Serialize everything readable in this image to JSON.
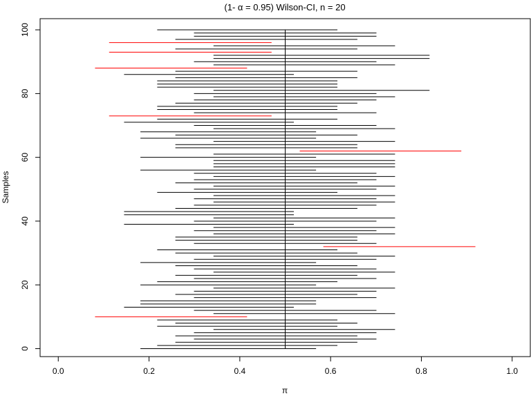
{
  "chart_data": {
    "type": "interval",
    "title": "(1- α = 0.95) Wilson-CI, n = 20",
    "xlabel": "π",
    "ylabel": "Samples",
    "xlim": [
      -0.04,
      1.04
    ],
    "ylim": [
      -2.5,
      103.5
    ],
    "xticks": [
      0.0,
      0.2,
      0.4,
      0.6,
      0.8,
      1.0
    ],
    "xtick_labels": [
      "0.0",
      "0.2",
      "0.4",
      "0.6",
      "0.8",
      "1.0"
    ],
    "yticks": [
      0,
      20,
      40,
      60,
      80,
      100
    ],
    "ytick_labels": [
      "0",
      "20",
      "40",
      "60",
      "80",
      "100"
    ],
    "reference_line": 0.5,
    "colors": {
      "covering": "#000000",
      "missing": "#ff0000"
    },
    "intervals": [
      [
        0.181,
        0.568
      ],
      [
        0.218,
        0.615
      ],
      [
        0.258,
        0.659
      ],
      [
        0.299,
        0.701
      ],
      [
        0.258,
        0.659
      ],
      [
        0.299,
        0.701
      ],
      [
        0.342,
        0.742
      ],
      [
        0.218,
        0.615
      ],
      [
        0.258,
        0.659
      ],
      [
        0.218,
        0.615
      ],
      [
        0.081,
        0.416
      ],
      [
        0.342,
        0.742
      ],
      [
        0.299,
        0.701
      ],
      [
        0.145,
        0.519
      ],
      [
        0.181,
        0.568
      ],
      [
        0.181,
        0.568
      ],
      [
        0.299,
        0.701
      ],
      [
        0.258,
        0.659
      ],
      [
        0.299,
        0.701
      ],
      [
        0.342,
        0.742
      ],
      [
        0.181,
        0.568
      ],
      [
        0.218,
        0.615
      ],
      [
        0.299,
        0.701
      ],
      [
        0.258,
        0.659
      ],
      [
        0.342,
        0.742
      ],
      [
        0.299,
        0.701
      ],
      [
        0.258,
        0.659
      ],
      [
        0.181,
        0.568
      ],
      [
        0.299,
        0.701
      ],
      [
        0.342,
        0.742
      ],
      [
        0.258,
        0.659
      ],
      [
        0.218,
        0.615
      ],
      [
        0.584,
        0.919
      ],
      [
        0.299,
        0.701
      ],
      [
        0.258,
        0.659
      ],
      [
        0.258,
        0.659
      ],
      [
        0.342,
        0.742
      ],
      [
        0.299,
        0.701
      ],
      [
        0.342,
        0.742
      ],
      [
        0.145,
        0.519
      ],
      [
        0.299,
        0.701
      ],
      [
        0.342,
        0.742
      ],
      [
        0.145,
        0.519
      ],
      [
        0.145,
        0.519
      ],
      [
        0.258,
        0.659
      ],
      [
        0.299,
        0.701
      ],
      [
        0.342,
        0.742
      ],
      [
        0.299,
        0.701
      ],
      [
        0.342,
        0.742
      ],
      [
        0.218,
        0.615
      ],
      [
        0.299,
        0.701
      ],
      [
        0.342,
        0.742
      ],
      [
        0.258,
        0.659
      ],
      [
        0.299,
        0.701
      ],
      [
        0.342,
        0.742
      ],
      [
        0.299,
        0.701
      ],
      [
        0.181,
        0.568
      ],
      [
        0.342,
        0.742
      ],
      [
        0.342,
        0.742
      ],
      [
        0.342,
        0.742
      ],
      [
        0.181,
        0.568
      ],
      [
        0.342,
        0.742
      ],
      [
        0.532,
        0.888
      ],
      [
        0.258,
        0.659
      ],
      [
        0.258,
        0.659
      ],
      [
        0.342,
        0.742
      ],
      [
        0.181,
        0.568
      ],
      [
        0.258,
        0.659
      ],
      [
        0.181,
        0.568
      ],
      [
        0.342,
        0.742
      ],
      [
        0.299,
        0.701
      ],
      [
        0.145,
        0.519
      ],
      [
        0.218,
        0.615
      ],
      [
        0.112,
        0.47
      ],
      [
        0.299,
        0.701
      ],
      [
        0.218,
        0.615
      ],
      [
        0.218,
        0.615
      ],
      [
        0.258,
        0.659
      ],
      [
        0.299,
        0.701
      ],
      [
        0.342,
        0.742
      ],
      [
        0.299,
        0.701
      ],
      [
        0.342,
        0.818
      ],
      [
        0.218,
        0.615
      ],
      [
        0.218,
        0.615
      ],
      [
        0.218,
        0.615
      ],
      [
        0.258,
        0.659
      ],
      [
        0.145,
        0.519
      ],
      [
        0.258,
        0.659
      ],
      [
        0.081,
        0.416
      ],
      [
        0.342,
        0.742
      ],
      [
        0.299,
        0.701
      ],
      [
        0.342,
        0.818
      ],
      [
        0.342,
        0.818
      ],
      [
        0.112,
        0.47
      ],
      [
        0.258,
        0.659
      ],
      [
        0.342,
        0.742
      ],
      [
        0.112,
        0.47
      ],
      [
        0.258,
        0.659
      ],
      [
        0.299,
        0.701
      ],
      [
        0.299,
        0.701
      ],
      [
        0.218,
        0.615
      ]
    ]
  }
}
